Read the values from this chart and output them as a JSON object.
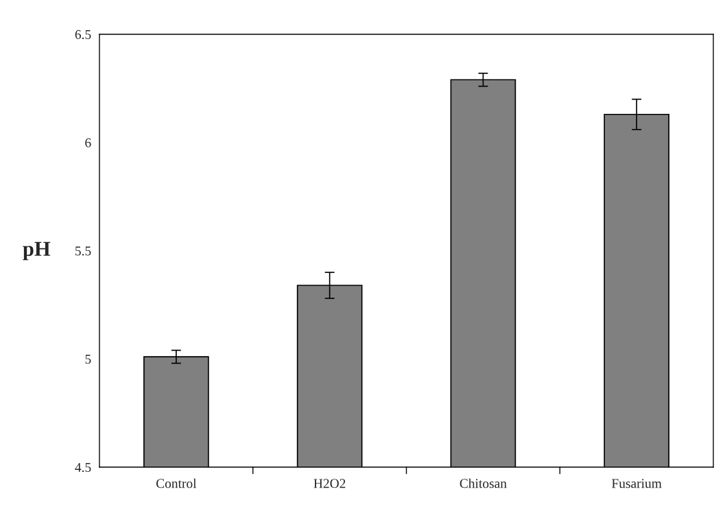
{
  "chart_data": {
    "type": "bar",
    "ylabel": "pH",
    "categories": [
      "Control",
      "H2O2",
      "Chitosan",
      "Fusarium"
    ],
    "values": [
      5.01,
      5.34,
      6.29,
      6.13
    ],
    "errors": [
      0.03,
      0.06,
      0.03,
      0.07
    ],
    "color": "#808080",
    "ylim": [
      4.5,
      6.5
    ],
    "yticks": [
      4.5,
      5,
      5.5,
      6,
      6.5
    ],
    "grid": false,
    "legend": false
  }
}
